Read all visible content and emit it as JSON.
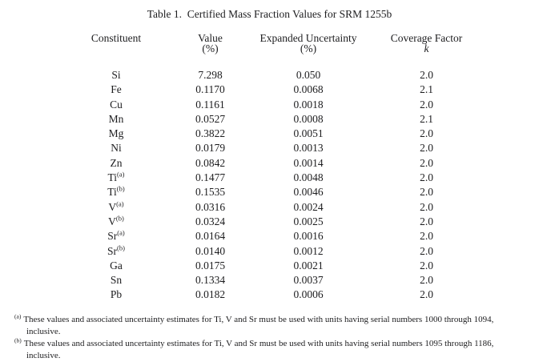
{
  "title": "Table 1.  Certified Mass Fraction Values for SRM 1255b",
  "colors": {
    "text": "#1d1d1f",
    "background": "#ffffff"
  },
  "table": {
    "columns": [
      {
        "label": "Constituent",
        "sub": ""
      },
      {
        "label": "Value",
        "sub": "(%)"
      },
      {
        "label": "Expanded Uncertainty",
        "sub": "(%)"
      },
      {
        "label": "Coverage Factor",
        "sub": "k"
      }
    ],
    "rows": [
      {
        "constituent": "Si",
        "note": "",
        "value": "7.298",
        "uncertainty": "0.050",
        "coverage_factor": "2.0"
      },
      {
        "constituent": "Fe",
        "note": "",
        "value": "0.1170",
        "uncertainty": "0.0068",
        "coverage_factor": "2.1"
      },
      {
        "constituent": "Cu",
        "note": "",
        "value": "0.1161",
        "uncertainty": "0.0018",
        "coverage_factor": "2.0"
      },
      {
        "constituent": "Mn",
        "note": "",
        "value": "0.0527",
        "uncertainty": "0.0008",
        "coverage_factor": "2.1"
      },
      {
        "constituent": "Mg",
        "note": "",
        "value": "0.3822",
        "uncertainty": "0.0051",
        "coverage_factor": "2.0"
      },
      {
        "constituent": "Ni",
        "note": "",
        "value": "0.0179",
        "uncertainty": "0.0013",
        "coverage_factor": "2.0"
      },
      {
        "constituent": "Zn",
        "note": "",
        "value": "0.0842",
        "uncertainty": "0.0014",
        "coverage_factor": "2.0"
      },
      {
        "constituent": "Ti",
        "note": "(a)",
        "value": "0.1477",
        "uncertainty": "0.0048",
        "coverage_factor": "2.0"
      },
      {
        "constituent": "Ti",
        "note": "(b)",
        "value": "0.1535",
        "uncertainty": "0.0046",
        "coverage_factor": "2.0"
      },
      {
        "constituent": "V",
        "note": "(a)",
        "value": "0.0316",
        "uncertainty": "0.0024",
        "coverage_factor": "2.0"
      },
      {
        "constituent": "V",
        "note": "(b)",
        "value": "0.0324",
        "uncertainty": "0.0025",
        "coverage_factor": "2.0"
      },
      {
        "constituent": "Sr",
        "note": "(a)",
        "value": "0.0164",
        "uncertainty": "0.0016",
        "coverage_factor": "2.0"
      },
      {
        "constituent": "Sr",
        "note": "(b)",
        "value": "0.0140",
        "uncertainty": "0.0012",
        "coverage_factor": "2.0"
      },
      {
        "constituent": "Ga",
        "note": "",
        "value": "0.0175",
        "uncertainty": "0.0021",
        "coverage_factor": "2.0"
      },
      {
        "constituent": "Sn",
        "note": "",
        "value": "0.1334",
        "uncertainty": "0.0037",
        "coverage_factor": "2.0"
      },
      {
        "constituent": "Pb",
        "note": "",
        "value": "0.0182",
        "uncertainty": "0.0006",
        "coverage_factor": "2.0"
      }
    ]
  },
  "footnotes": [
    {
      "marker": "(a)",
      "text": "These values and associated uncertainty estimates for Ti, V and Sr must be used with units having serial numbers 1000 through 1094, inclusive."
    },
    {
      "marker": "(b)",
      "text": "These values and associated uncertainty estimates for Ti, V and Sr must be used with units having serial numbers 1095 through 1186, inclusive."
    }
  ]
}
